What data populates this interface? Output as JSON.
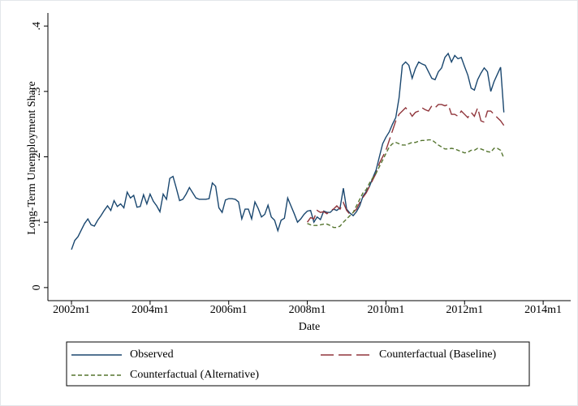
{
  "chart_data": {
    "type": "line",
    "xlabel": "Date",
    "ylabel": "Long-Term Unemployment Share",
    "x": [
      2002,
      2002.083,
      2002.167,
      2002.25,
      2002.333,
      2002.417,
      2002.5,
      2002.583,
      2002.667,
      2002.75,
      2002.833,
      2002.917,
      2003,
      2003.083,
      2003.167,
      2003.25,
      2003.333,
      2003.417,
      2003.5,
      2003.583,
      2003.667,
      2003.75,
      2003.833,
      2003.917,
      2004,
      2004.083,
      2004.167,
      2004.25,
      2004.333,
      2004.417,
      2004.5,
      2004.583,
      2004.667,
      2004.75,
      2004.833,
      2004.917,
      2005,
      2005.083,
      2005.167,
      2005.25,
      2005.333,
      2005.417,
      2005.5,
      2005.583,
      2005.667,
      2005.75,
      2005.833,
      2005.917,
      2006,
      2006.083,
      2006.167,
      2006.25,
      2006.333,
      2006.417,
      2006.5,
      2006.583,
      2006.667,
      2006.75,
      2006.833,
      2006.917,
      2007,
      2007.083,
      2007.167,
      2007.25,
      2007.333,
      2007.417,
      2007.5,
      2007.583,
      2007.667,
      2007.75,
      2007.833,
      2007.917,
      2008,
      2008.083,
      2008.167,
      2008.25,
      2008.333,
      2008.417,
      2008.5,
      2008.583,
      2008.667,
      2008.75,
      2008.833,
      2008.917,
      2009,
      2009.083,
      2009.167,
      2009.25,
      2009.333,
      2009.417,
      2009.5,
      2009.583,
      2009.667,
      2009.75,
      2009.833,
      2009.917,
      2010,
      2010.083,
      2010.167,
      2010.25,
      2010.333,
      2010.417,
      2010.5,
      2010.583,
      2010.667,
      2010.75,
      2010.833,
      2010.917,
      2011,
      2011.083,
      2011.167,
      2011.25,
      2011.333,
      2011.417,
      2011.5,
      2011.583,
      2011.667,
      2011.75,
      2011.833,
      2011.917,
      2012,
      2012.083,
      2012.167,
      2012.25,
      2012.333,
      2012.417,
      2012.5,
      2012.583,
      2012.667,
      2012.75,
      2012.833,
      2012.917,
      2013
    ],
    "series": [
      {
        "name": "Observed",
        "color": "#1a476f",
        "style": "solid",
        "values": [
          0.058,
          0.072,
          0.078,
          0.088,
          0.098,
          0.105,
          0.096,
          0.094,
          0.103,
          0.11,
          0.118,
          0.125,
          0.118,
          0.133,
          0.124,
          0.128,
          0.122,
          0.146,
          0.137,
          0.141,
          0.123,
          0.124,
          0.142,
          0.128,
          0.143,
          0.132,
          0.125,
          0.116,
          0.143,
          0.135,
          0.167,
          0.17,
          0.152,
          0.133,
          0.135,
          0.143,
          0.153,
          0.145,
          0.137,
          0.135,
          0.135,
          0.135,
          0.136,
          0.16,
          0.155,
          0.122,
          0.115,
          0.134,
          0.136,
          0.136,
          0.135,
          0.131,
          0.105,
          0.12,
          0.12,
          0.105,
          0.131,
          0.121,
          0.108,
          0.112,
          0.126,
          0.108,
          0.103,
          0.087,
          0.103,
          0.106,
          0.137,
          0.125,
          0.113,
          0.1,
          0.105,
          0.112,
          0.117,
          0.118,
          0.1,
          0.108,
          0.104,
          0.117,
          0.115,
          0.115,
          0.12,
          0.118,
          0.122,
          0.152,
          0.12,
          0.114,
          0.11,
          0.116,
          0.125,
          0.14,
          0.147,
          0.155,
          0.168,
          0.18,
          0.2,
          0.22,
          0.23,
          0.238,
          0.25,
          0.26,
          0.29,
          0.34,
          0.345,
          0.34,
          0.32,
          0.335,
          0.345,
          0.342,
          0.34,
          0.33,
          0.32,
          0.318,
          0.33,
          0.336,
          0.352,
          0.358,
          0.345,
          0.355,
          0.35,
          0.352,
          0.338,
          0.325,
          0.305,
          0.302,
          0.318,
          0.328,
          0.336,
          0.33,
          0.3,
          0.315,
          0.326,
          0.337,
          0.268
        ]
      },
      {
        "name": "Counterfactual (Baseline)",
        "color": "#90353b",
        "style": "long",
        "values": [
          null,
          null,
          null,
          null,
          null,
          null,
          null,
          null,
          null,
          null,
          null,
          null,
          null,
          null,
          null,
          null,
          null,
          null,
          null,
          null,
          null,
          null,
          null,
          null,
          null,
          null,
          null,
          null,
          null,
          null,
          null,
          null,
          null,
          null,
          null,
          null,
          null,
          null,
          null,
          null,
          null,
          null,
          null,
          null,
          null,
          null,
          null,
          null,
          null,
          null,
          null,
          null,
          null,
          null,
          null,
          null,
          null,
          null,
          null,
          null,
          null,
          null,
          null,
          null,
          null,
          null,
          null,
          null,
          null,
          null,
          null,
          null,
          0.1,
          0.107,
          0.105,
          0.118,
          0.115,
          0.116,
          0.113,
          0.118,
          0.12,
          0.125,
          0.12,
          0.13,
          0.118,
          0.112,
          0.115,
          0.12,
          0.13,
          0.138,
          0.145,
          0.155,
          0.165,
          0.175,
          0.19,
          0.2,
          0.21,
          0.225,
          0.24,
          0.255,
          0.265,
          0.27,
          0.275,
          0.27,
          0.262,
          0.268,
          0.27,
          0.275,
          0.272,
          0.27,
          0.278,
          0.275,
          0.28,
          0.28,
          0.278,
          0.28,
          0.265,
          0.265,
          0.262,
          0.27,
          0.265,
          0.26,
          0.268,
          0.262,
          0.275,
          0.255,
          0.253,
          0.27,
          0.27,
          0.265,
          0.26,
          0.255,
          0.248
        ]
      },
      {
        "name": "Counterfactual (Alternative)",
        "color": "#55752f",
        "style": "short",
        "values": [
          null,
          null,
          null,
          null,
          null,
          null,
          null,
          null,
          null,
          null,
          null,
          null,
          null,
          null,
          null,
          null,
          null,
          null,
          null,
          null,
          null,
          null,
          null,
          null,
          null,
          null,
          null,
          null,
          null,
          null,
          null,
          null,
          null,
          null,
          null,
          null,
          null,
          null,
          null,
          null,
          null,
          null,
          null,
          null,
          null,
          null,
          null,
          null,
          null,
          null,
          null,
          null,
          null,
          null,
          null,
          null,
          null,
          null,
          null,
          null,
          null,
          null,
          null,
          null,
          null,
          null,
          null,
          null,
          null,
          null,
          null,
          null,
          0.098,
          0.096,
          0.095,
          0.095,
          0.096,
          0.097,
          0.097,
          0.095,
          0.092,
          0.092,
          0.094,
          0.1,
          0.105,
          0.11,
          0.115,
          0.125,
          0.135,
          0.145,
          0.15,
          0.16,
          0.168,
          0.175,
          0.185,
          0.195,
          0.205,
          0.215,
          0.22,
          0.222,
          0.22,
          0.218,
          0.218,
          0.22,
          0.222,
          0.222,
          0.224,
          0.225,
          0.225,
          0.226,
          0.226,
          0.222,
          0.218,
          0.215,
          0.212,
          0.212,
          0.213,
          0.212,
          0.21,
          0.208,
          0.206,
          0.207,
          0.21,
          0.21,
          0.213,
          0.212,
          0.21,
          0.208,
          0.207,
          0.213,
          0.213,
          0.21,
          0.198
        ]
      }
    ],
    "xlim": [
      2001.4,
      2014.7
    ],
    "xticks": [
      {
        "value": 2002,
        "label": "2002m1"
      },
      {
        "value": 2004,
        "label": "2004m1"
      },
      {
        "value": 2006,
        "label": "2006m1"
      },
      {
        "value": 2008,
        "label": "2008m1"
      },
      {
        "value": 2010,
        "label": "2010m1"
      },
      {
        "value": 2012,
        "label": "2012m1"
      },
      {
        "value": 2014,
        "label": "2014m1"
      }
    ],
    "ylim": [
      -0.02,
      0.42
    ],
    "yticks": [
      0,
      {
        "value": 0.1,
        "label": ".1"
      },
      {
        "value": 0.2,
        "label": ".2"
      },
      {
        "value": 0.3,
        "label": ".3"
      },
      {
        "value": 0.4,
        "label": ".4"
      }
    ],
    "grid": false
  }
}
